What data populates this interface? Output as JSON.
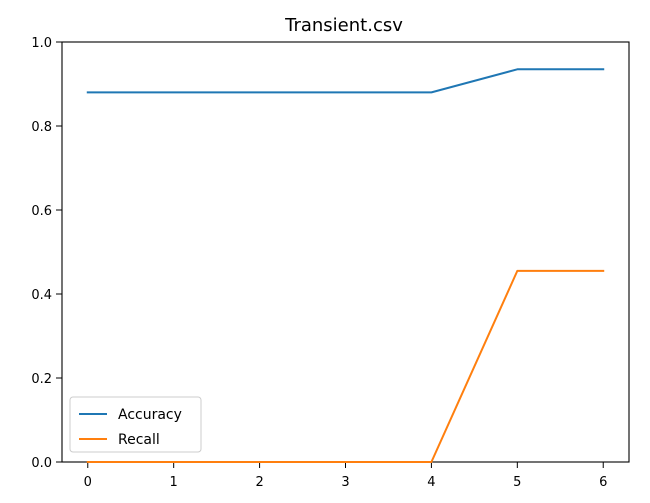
{
  "chart_data": {
    "type": "line",
    "title": "Transient.csv",
    "xlabel": "",
    "ylabel": "",
    "x": [
      0,
      1,
      2,
      3,
      4,
      5,
      6
    ],
    "xlim": [
      -0.3,
      6.3
    ],
    "ylim": [
      0.0,
      1.0
    ],
    "xticks": [
      "0",
      "1",
      "2",
      "3",
      "4",
      "5",
      "6"
    ],
    "yticks": [
      "0.0",
      "0.2",
      "0.4",
      "0.6",
      "0.8",
      "1.0"
    ],
    "grid": false,
    "legend_position": "lower-left",
    "series": [
      {
        "name": "Accuracy",
        "color": "#1f77b4",
        "values": [
          0.88,
          0.88,
          0.88,
          0.88,
          0.88,
          0.935,
          0.935
        ]
      },
      {
        "name": "Recall",
        "color": "#ff7f0e",
        "values": [
          0.0,
          0.0,
          0.0,
          0.0,
          0.0,
          0.455,
          0.455
        ]
      }
    ]
  }
}
